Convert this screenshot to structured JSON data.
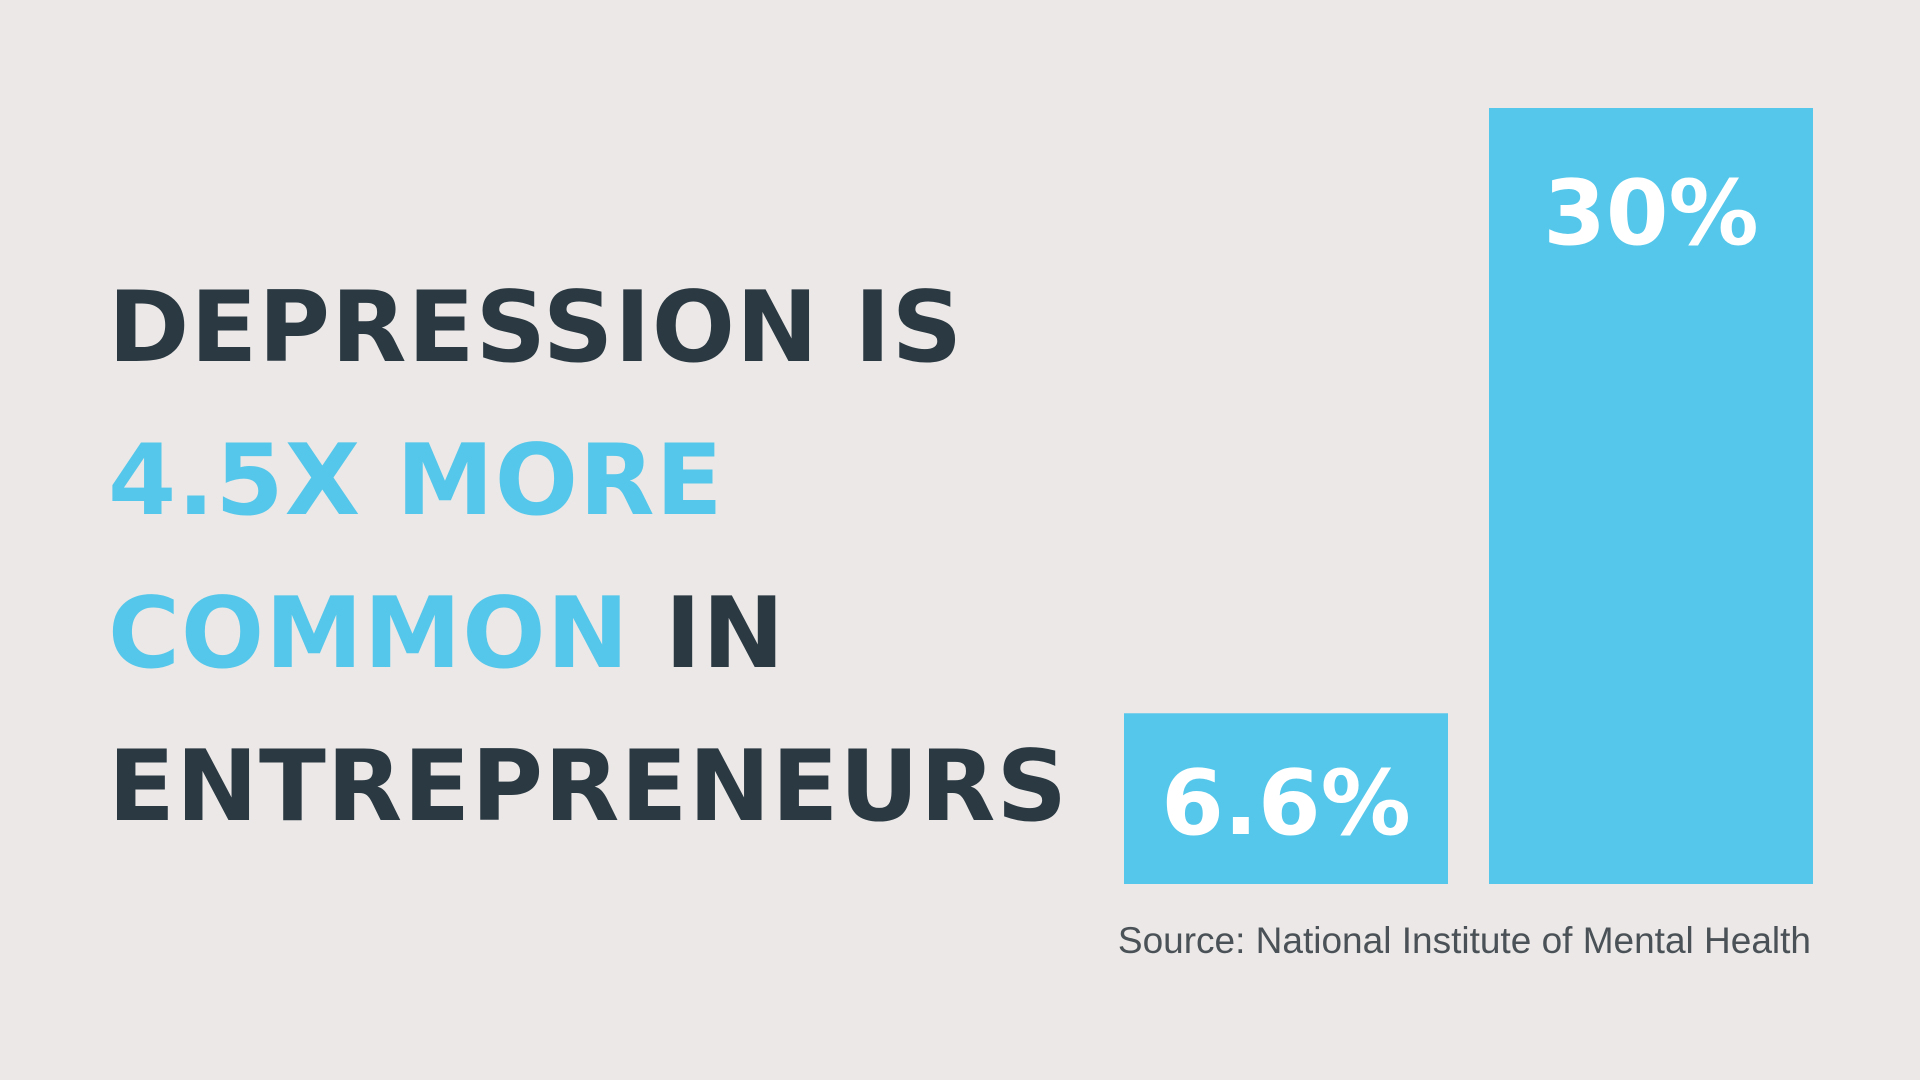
{
  "headline": {
    "line1": "DEPRESSION IS",
    "line2": "4.5X MORE",
    "line3_accent": "COMMON",
    "line3_rest": " IN",
    "line4": "ENTREPRENEURS"
  },
  "colors": {
    "background": "#ebe8e7",
    "accent": "#55c7ea",
    "dark_text": "#2b3942",
    "bar_label": "#ffffff"
  },
  "chart_data": {
    "type": "bar",
    "categories": [
      "",
      ""
    ],
    "values": [
      6.6,
      30
    ],
    "labels": [
      "6.6%",
      "30%"
    ],
    "ylim": [
      0,
      30
    ],
    "grid": false,
    "axes_visible": false,
    "bar_color": "#55c7ea"
  },
  "source": "Source: National Institute of Mental Health"
}
